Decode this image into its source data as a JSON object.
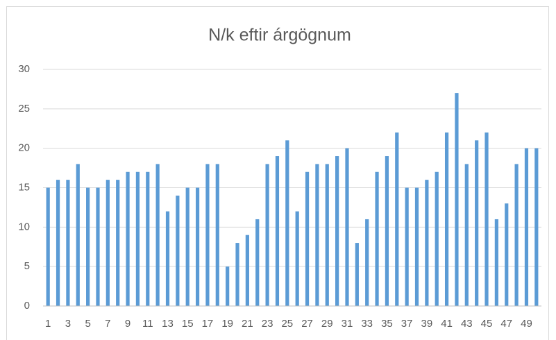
{
  "chart_data": {
    "type": "bar",
    "title": "N/k eftir árgögnum",
    "categories": [
      "1",
      null,
      "3",
      null,
      "5",
      null,
      "7",
      null,
      "9",
      null,
      "11",
      null,
      "13",
      null,
      "15",
      null,
      "17",
      null,
      "19",
      null,
      "21",
      null,
      "23",
      null,
      "25",
      null,
      "27",
      null,
      "29",
      null,
      "31",
      null,
      "33",
      null,
      "35",
      null,
      "37",
      null,
      "39",
      null,
      "41",
      null,
      "43",
      null,
      "45",
      null,
      "47",
      null,
      "49",
      null
    ],
    "values": [
      15,
      16,
      16,
      18,
      15,
      15,
      16,
      16,
      17,
      17,
      17,
      18,
      12,
      14,
      15,
      15,
      18,
      18,
      5,
      8,
      9,
      11,
      18,
      19,
      21,
      12,
      17,
      18,
      18,
      19,
      20,
      8,
      11,
      17,
      19,
      22,
      15,
      15,
      16,
      17,
      22,
      27,
      18,
      21,
      22,
      11,
      13,
      18,
      20,
      20
    ],
    "color": "#5b9bd5",
    "ylim": [
      0,
      30
    ],
    "yticks": [
      0,
      5,
      10,
      15,
      20,
      25,
      30
    ],
    "grid": true
  }
}
